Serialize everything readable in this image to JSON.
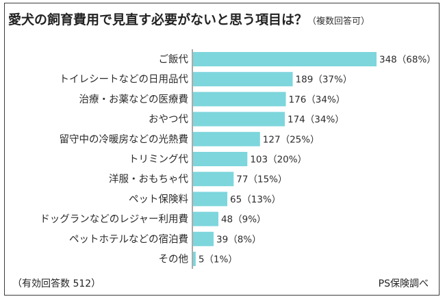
{
  "title": "愛犬の飼育費用で見直す必要がないと思う項目は？",
  "subtitle": "（複数回答可）",
  "footer": {
    "note": "（有効回答数 512）",
    "source": "PS保険調べ"
  },
  "colors": {
    "bar": "#7dd6dc",
    "axis": "#555555",
    "text": "#2b2b2b"
  },
  "chart_data": {
    "type": "bar",
    "orientation": "horizontal",
    "title": "愛犬の飼育費用で見直す必要がないと思う項目は？",
    "categories": [
      "ご飯代",
      "トイレシートなどの日用品代",
      "治療・お薬などの医療費",
      "おやつ代",
      "留守中の冷暖房などの光熱費",
      "トリミング代",
      "洋服・おもちゃ代",
      "ペット保険料",
      "ドッグランなどのレジャー利用費",
      "ペットホテルなどの宿泊費",
      "その他"
    ],
    "values": [
      348,
      189,
      176,
      174,
      127,
      103,
      77,
      65,
      48,
      39,
      5
    ],
    "data_labels": [
      "348（68%）",
      "189（37%）",
      "176（34%）",
      "174（34%）",
      "127（25%）",
      "103（20%）",
      "77（15%）",
      "65（13%）",
      "48（9%）",
      "39（8%）",
      "5（1%）"
    ],
    "xlim": [
      0,
      348
    ],
    "grid": false
  }
}
